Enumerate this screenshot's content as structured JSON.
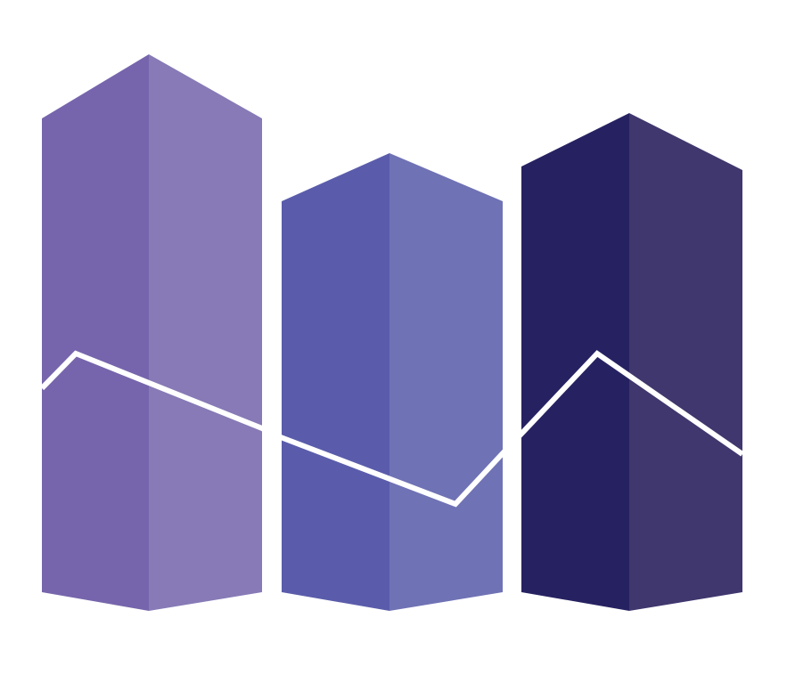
{
  "palette": {
    "background": "#ffffff",
    "line": "#ffffff",
    "bars": [
      {
        "left_face": "#7665AC",
        "right_face": "#877AB6"
      },
      {
        "left_face": "#5A5CAB",
        "right_face": "#6F72B4"
      },
      {
        "left_face": "#262262",
        "right_face": "#3F376D"
      }
    ]
  },
  "icon": {
    "name": "bar-chart-with-trend-line-icon",
    "bar_count": 3
  }
}
